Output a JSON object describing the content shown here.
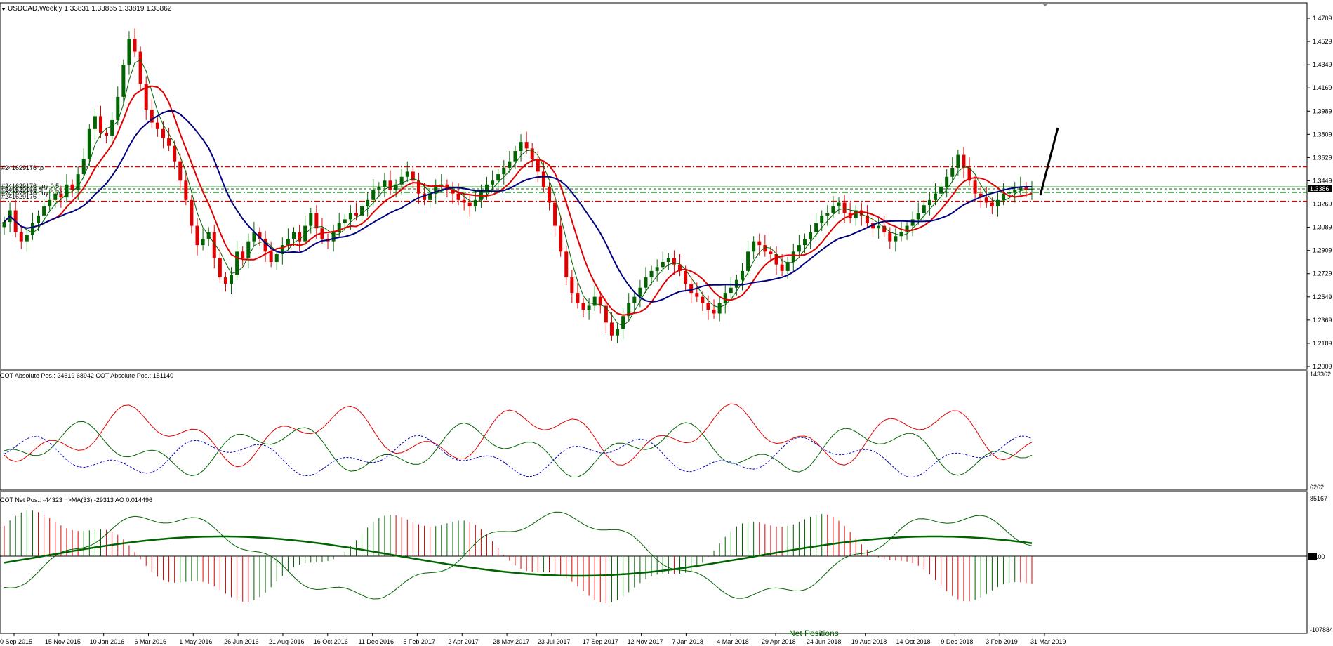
{
  "header": {
    "symbol_line": "USDCAD,Weekly  1.33831 1.33865 1.33819 1.33862"
  },
  "price_panel": {
    "trade_labels": [
      "#241629176 tp",
      "#241629176 buy 0.5",
      "#241629176 sl",
      "#241629176 buy 0.70",
      "#241629176"
    ],
    "current_price_label": "1.3386",
    "y_ticks": [
      "1.4709",
      "1.4529",
      "1.4349",
      "1.4169",
      "1.3989",
      "1.3809",
      "1.3629",
      "1.3449",
      "1.3269",
      "1.3089",
      "1.2909",
      "1.2729",
      "1.2549",
      "1.2369",
      "1.2189",
      "1.2009"
    ],
    "h_levels": [
      {
        "price": 1.3558,
        "color": "#e00000",
        "style": "dashdot"
      },
      {
        "price": 1.3402,
        "color": "#008000",
        "style": "solid"
      },
      {
        "price": 1.3386,
        "color": "#808080",
        "style": "dash"
      },
      {
        "price": 1.336,
        "color": "#008000",
        "style": "dashdot"
      },
      {
        "price": 1.329,
        "color": "#e00000",
        "style": "dashdot"
      }
    ]
  },
  "cot_abs_panel": {
    "label": "COT Absolute Pos.:  24619 68942  COT Absolute Pos.:  151140",
    "y_ticks": [
      "143362",
      "6262"
    ]
  },
  "cot_net_panel": {
    "label": "COT Net Pos.:  -44323  =>MA(33) -29313  AO 0.014496",
    "y_ticks": [
      "85167",
      "0.00",
      "-107884"
    ],
    "watermark": "Net Positions"
  },
  "x_axis": {
    "labels": [
      "0 Sep 2015",
      "15 Nov 2015",
      "10 Jan 2016",
      "6 Mar 2016",
      "1 May 2016",
      "26 Jun 2016",
      "21 Aug 2016",
      "16 Oct 2016",
      "11 Dec 2016",
      "5 Feb 2017",
      "2 Apr 2017",
      "28 May 2017",
      "23 Jul 2017",
      "17 Sep 2017",
      "12 Nov 2017",
      "7 Jan 2018",
      "4 Mar 2018",
      "29 Apr 2018",
      "24 Jun 2018",
      "19 Aug 2018",
      "14 Oct 2018",
      "9 Dec 2018",
      "3 Feb 2019",
      "31 Mar 2019"
    ]
  },
  "colors": {
    "bull": "#006400",
    "bear": "#e00000",
    "ma_fast": "#006400",
    "ma_mid": "#e00000",
    "ma_slow": "#000080",
    "cot_red": "#e00000",
    "cot_green": "#006400",
    "cot_blue": "#0000c0"
  },
  "chart_data": {
    "type": "candlestick",
    "pair": "USDCAD",
    "timeframe": "Weekly",
    "close": [
      1.313,
      1.322,
      1.305,
      1.298,
      1.303,
      1.312,
      1.318,
      1.325,
      1.33,
      1.335,
      1.332,
      1.342,
      1.338,
      1.35,
      1.362,
      1.385,
      1.395,
      1.382,
      1.38,
      1.392,
      1.41,
      1.435,
      1.455,
      1.445,
      1.42,
      1.4,
      1.39,
      1.385,
      1.378,
      1.372,
      1.36,
      1.345,
      1.33,
      1.31,
      1.295,
      1.3,
      1.305,
      1.285,
      1.27,
      1.265,
      1.272,
      1.29,
      1.285,
      1.298,
      1.305,
      1.3,
      1.29,
      1.282,
      1.288,
      1.295,
      1.3,
      1.305,
      1.298,
      1.31,
      1.32,
      1.308,
      1.3,
      1.298,
      1.305,
      1.312,
      1.315,
      1.32,
      1.318,
      1.325,
      1.33,
      1.338,
      1.34,
      1.345,
      1.338,
      1.342,
      1.348,
      1.352,
      1.345,
      1.335,
      1.33,
      1.335,
      1.34,
      1.342,
      1.338,
      1.335,
      1.33,
      1.328,
      1.325,
      1.33,
      1.338,
      1.342,
      1.345,
      1.35,
      1.355,
      1.36,
      1.368,
      1.375,
      1.37,
      1.362,
      1.352,
      1.34,
      1.328,
      1.31,
      1.29,
      1.27,
      1.258,
      1.25,
      1.245,
      1.248,
      1.255,
      1.248,
      1.235,
      1.225,
      1.23,
      1.24,
      1.25,
      1.255,
      1.262,
      1.27,
      1.275,
      1.278,
      1.282,
      1.285,
      1.28,
      1.275,
      1.265,
      1.258,
      1.255,
      1.25,
      1.245,
      1.242,
      1.25,
      1.258,
      1.262,
      1.268,
      1.275,
      1.29,
      1.298,
      1.295,
      1.29,
      1.288,
      1.28,
      1.275,
      1.282,
      1.29,
      1.295,
      1.3,
      1.305,
      1.312,
      1.318,
      1.32,
      1.325,
      1.328,
      1.32,
      1.316,
      1.322,
      1.318,
      1.312,
      1.308,
      1.31,
      1.305,
      1.298,
      1.302,
      1.305,
      1.31,
      1.315,
      1.32,
      1.326,
      1.33,
      1.335,
      1.34,
      1.348,
      1.355,
      1.365,
      1.355,
      1.345,
      1.335,
      1.332,
      1.328,
      1.325,
      1.33,
      1.335,
      1.336,
      1.338,
      1.34,
      1.338,
      1.3386
    ]
  }
}
